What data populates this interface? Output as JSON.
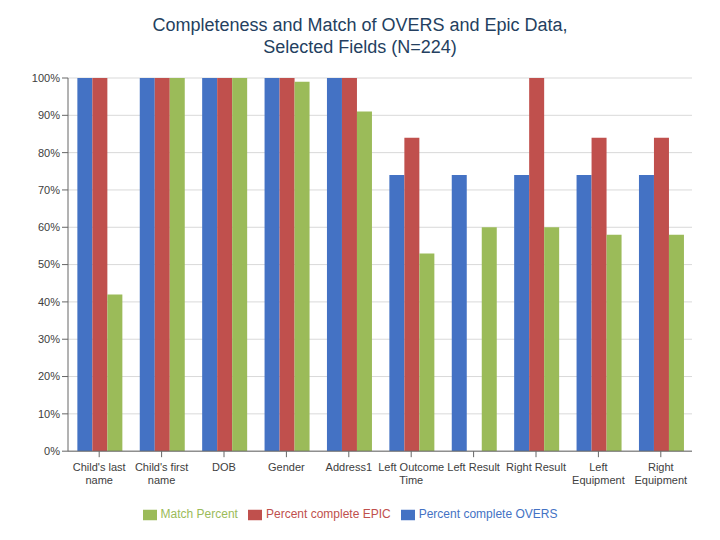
{
  "chart_data": {
    "type": "bar",
    "title": "Completeness and Match of OVERS and Epic Data,\nSelected Fields (N=224)",
    "categories": [
      "Child's last\nname",
      "Child's first\nname",
      "DOB",
      "Gender",
      "Address1",
      "Left Outcome\nTime",
      "Left Result",
      "Right Result",
      "Left\nEquipment",
      "Right\nEquipment"
    ],
    "series": [
      {
        "name": "Percent complete OVERS",
        "color": "#4472C4",
        "values": [
          1.0,
          1.0,
          1.0,
          1.0,
          1.0,
          0.74,
          0.74,
          0.74,
          0.74,
          0.74
        ]
      },
      {
        "name": "Percent complete EPIC",
        "color": "#C0504D",
        "values": [
          1.0,
          1.0,
          1.0,
          1.0,
          1.0,
          0.84,
          0.0,
          1.0,
          0.84,
          0.84
        ]
      },
      {
        "name": "Match Percent",
        "color": "#9BBB59",
        "values": [
          0.42,
          1.0,
          1.0,
          0.99,
          0.91,
          0.53,
          0.6,
          0.6,
          0.58,
          0.58
        ]
      }
    ],
    "ylim": [
      0,
      1.0
    ],
    "yticks": [
      {
        "value": 0.0,
        "label": "0%"
      },
      {
        "value": 0.1,
        "label": "10%"
      },
      {
        "value": 0.2,
        "label": "20%"
      },
      {
        "value": 0.3,
        "label": "30%"
      },
      {
        "value": 0.4,
        "label": "40%"
      },
      {
        "value": 0.5,
        "label": "50%"
      },
      {
        "value": 0.6,
        "label": "60%"
      },
      {
        "value": 0.7,
        "label": "70%"
      },
      {
        "value": 0.8,
        "label": "80%"
      },
      {
        "value": 0.9,
        "label": "90%"
      },
      {
        "value": 1.0,
        "label": "100%"
      }
    ],
    "grid": true,
    "legend": "bottom"
  }
}
